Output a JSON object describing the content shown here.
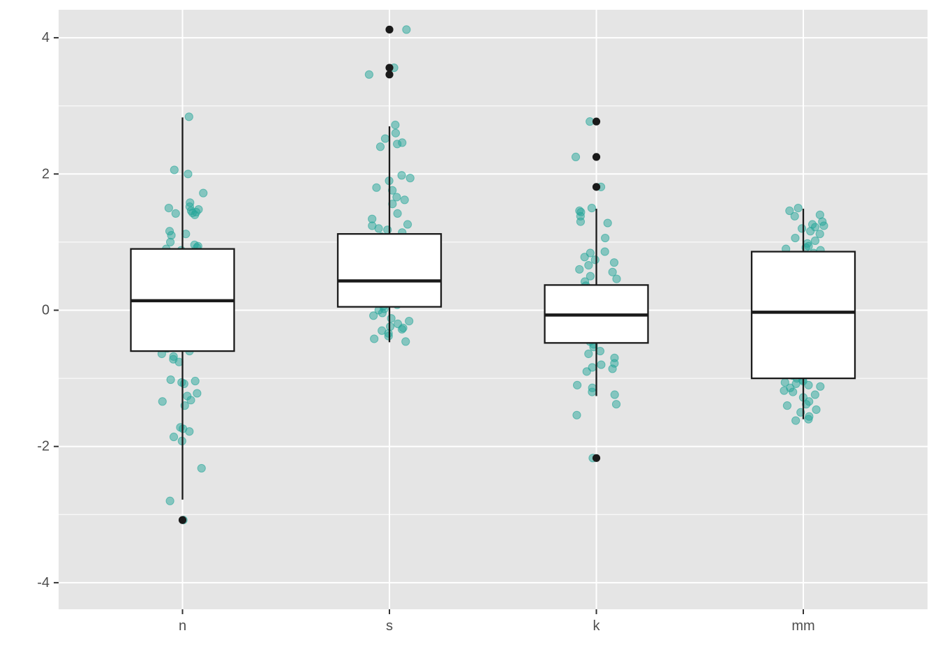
{
  "chart_data": {
    "type": "box",
    "title": "",
    "xlabel": "",
    "ylabel": "",
    "categories": [
      "n",
      "s",
      "k",
      "mm"
    ],
    "ylim": [
      -4.4,
      4.4
    ],
    "y_ticks": [
      -4,
      -2,
      0,
      2,
      4
    ],
    "y_tick_labels": [
      "-4",
      "-2",
      "0",
      "2",
      "4"
    ],
    "grid": true,
    "legend": "none",
    "colors": {
      "panel": "#e5e5e5",
      "grid": "#ffffff",
      "points": "#26a69a",
      "box_fill": "#ffffff",
      "box_line": "#1a1a1a",
      "outlier": "#1a1a1a"
    },
    "boxes": [
      {
        "category": "n",
        "q1": -0.6,
        "median": 0.14,
        "q3": 0.9,
        "whisker_low": -2.78,
        "whisker_high": 2.83,
        "outliers": [
          -3.08
        ]
      },
      {
        "category": "s",
        "q1": 0.05,
        "median": 0.43,
        "q3": 1.12,
        "whisker_low": -0.47,
        "whisker_high": 2.7,
        "outliers": [
          4.12,
          3.56,
          3.46
        ]
      },
      {
        "category": "k",
        "q1": -0.48,
        "median": -0.07,
        "q3": 0.37,
        "whisker_low": -1.26,
        "whisker_high": 1.49,
        "outliers": [
          2.77,
          2.25,
          1.81,
          -2.17
        ]
      },
      {
        "category": "mm",
        "q1": -1.0,
        "median": -0.03,
        "q3": 0.86,
        "whisker_low": -1.6,
        "whisker_high": 1.49,
        "outliers": []
      }
    ],
    "jitter_points": [
      {
        "category": "n",
        "values": [
          2.84,
          2.06,
          2.0,
          1.72,
          1.58,
          1.52,
          1.5,
          1.48,
          1.46,
          1.44,
          1.43,
          1.42,
          1.4,
          1.16,
          1.12,
          1.1,
          1.0,
          0.96,
          0.94,
          0.92,
          0.9,
          0.88,
          0.78,
          0.7,
          0.68,
          0.66,
          0.6,
          0.58,
          0.56,
          0.5,
          0.46,
          0.38,
          0.36,
          0.32,
          0.3,
          0.28,
          0.26,
          0.22,
          0.2,
          0.18,
          0.16,
          0.14,
          0.12,
          0.1,
          0.08,
          0.04,
          0.02,
          -0.04,
          -0.06,
          -0.1,
          -0.18,
          -0.2,
          -0.24,
          -0.28,
          -0.32,
          -0.36,
          -0.4,
          -0.44,
          -0.46,
          -0.5,
          -0.52,
          -0.56,
          -0.6,
          -0.64,
          -0.68,
          -0.72,
          -0.76,
          -1.02,
          -1.04,
          -1.06,
          -1.08,
          -1.22,
          -1.26,
          -1.32,
          -1.34,
          -1.4,
          -1.72,
          -1.74,
          -1.78,
          -1.86,
          -1.92,
          -2.32,
          -2.8,
          -3.08
        ]
      },
      {
        "category": "s",
        "values": [
          4.12,
          3.56,
          3.46,
          2.72,
          2.6,
          2.52,
          2.46,
          2.44,
          2.4,
          1.98,
          1.94,
          1.9,
          1.8,
          1.76,
          1.66,
          1.62,
          1.56,
          1.42,
          1.34,
          1.26,
          1.24,
          1.2,
          1.18,
          1.14,
          1.08,
          1.04,
          1.02,
          1.0,
          0.96,
          0.9,
          0.86,
          0.76,
          0.72,
          0.68,
          0.66,
          0.6,
          0.58,
          0.52,
          0.48,
          0.46,
          0.44,
          0.42,
          0.4,
          0.38,
          0.36,
          0.34,
          0.3,
          0.28,
          0.26,
          0.22,
          0.2,
          0.18,
          0.16,
          0.14,
          0.12,
          0.08,
          0.06,
          0.02,
          0.0,
          -0.04,
          -0.08,
          -0.12,
          -0.16,
          -0.2,
          -0.24,
          -0.26,
          -0.28,
          -0.3,
          -0.34,
          -0.38,
          -0.42,
          -0.46
        ]
      },
      {
        "category": "k",
        "values": [
          2.77,
          2.25,
          1.81,
          1.5,
          1.46,
          1.44,
          1.38,
          1.3,
          1.28,
          1.06,
          0.86,
          0.84,
          0.78,
          0.74,
          0.7,
          0.66,
          0.6,
          0.56,
          0.5,
          0.46,
          0.42,
          0.36,
          0.24,
          0.2,
          0.18,
          0.16,
          0.14,
          0.1,
          0.08,
          0.06,
          0.04,
          0.02,
          0.0,
          -0.04,
          -0.08,
          -0.1,
          -0.14,
          -0.18,
          -0.22,
          -0.26,
          -0.28,
          -0.3,
          -0.34,
          -0.38,
          -0.42,
          -0.46,
          -0.5,
          -0.54,
          -0.6,
          -0.64,
          -0.7,
          -0.78,
          -0.8,
          -0.84,
          -0.86,
          -0.9,
          -1.1,
          -1.14,
          -1.2,
          -1.24,
          -1.38,
          -1.54,
          -2.17
        ]
      },
      {
        "category": "mm",
        "values": [
          1.5,
          1.46,
          1.4,
          1.38,
          1.3,
          1.26,
          1.24,
          1.22,
          1.2,
          1.16,
          1.12,
          1.06,
          1.02,
          0.98,
          0.94,
          0.92,
          0.9,
          0.88,
          0.84,
          0.8,
          0.76,
          0.72,
          0.7,
          0.66,
          0.6,
          0.56,
          0.52,
          0.42,
          0.26,
          0.22,
          0.2,
          -0.24,
          -0.36,
          -0.48,
          -0.52,
          -0.58,
          -0.62,
          -0.64,
          -0.68,
          -0.72,
          -0.76,
          -0.8,
          -0.84,
          -0.88,
          -0.92,
          -0.96,
          -1.0,
          -1.02,
          -1.04,
          -1.06,
          -1.08,
          -1.1,
          -1.12,
          -1.14,
          -1.18,
          -1.2,
          -1.24,
          -1.28,
          -1.34,
          -1.38,
          -1.4,
          -1.46,
          -1.5,
          -1.56,
          -1.6,
          -1.62
        ]
      }
    ]
  }
}
